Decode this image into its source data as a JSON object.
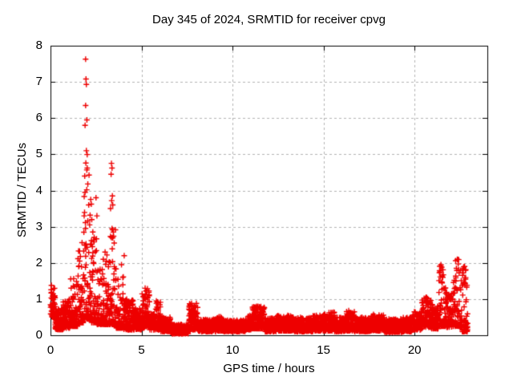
{
  "chart_data": {
    "type": "scatter",
    "title": "Day 345 of 2024, SRMTID for receiver cpvg",
    "xlabel": "GPS time / hours",
    "ylabel": "SRMTID / TECUs",
    "xlim": [
      0,
      24
    ],
    "ylim": [
      0,
      8
    ],
    "xticks": [
      0,
      5,
      10,
      15,
      20
    ],
    "yticks": [
      0,
      1,
      2,
      3,
      4,
      5,
      6,
      7,
      8
    ],
    "grid": {
      "visible": true,
      "style": "dashed",
      "color": "#b4b4b4"
    },
    "legend": "none",
    "marker": {
      "shape": "plus",
      "color": "#ee0000",
      "size": 7
    },
    "series_name": "SRMTID",
    "sampling": {
      "rate_per_hour": 120,
      "t_start": 0.0,
      "t_end": 22.92,
      "seed": 345
    },
    "band_envelope": [
      [
        0.0,
        0.25,
        0.5,
        1.35
      ],
      [
        0.25,
        0.7,
        0.15,
        0.75
      ],
      [
        0.7,
        1.1,
        0.2,
        1.0
      ],
      [
        1.1,
        1.5,
        0.25,
        1.6
      ],
      [
        1.5,
        1.8,
        0.35,
        2.6
      ],
      [
        1.8,
        2.25,
        0.45,
        5.0
      ],
      [
        2.25,
        2.55,
        0.35,
        3.2
      ],
      [
        2.55,
        2.95,
        0.3,
        1.9
      ],
      [
        2.95,
        3.2,
        0.3,
        2.3
      ],
      [
        3.2,
        3.6,
        0.3,
        3.3
      ],
      [
        3.6,
        4.0,
        0.2,
        1.7
      ],
      [
        4.0,
        4.6,
        0.15,
        1.0
      ],
      [
        4.6,
        5.0,
        0.15,
        0.75
      ],
      [
        5.0,
        5.45,
        0.2,
        1.3
      ],
      [
        5.45,
        5.75,
        0.15,
        0.6
      ],
      [
        5.75,
        6.05,
        0.15,
        0.95
      ],
      [
        6.05,
        6.6,
        0.1,
        0.5
      ],
      [
        6.6,
        7.6,
        0.04,
        0.3
      ],
      [
        7.6,
        8.1,
        0.15,
        0.88
      ],
      [
        8.1,
        9.1,
        0.1,
        0.45
      ],
      [
        9.1,
        9.5,
        0.12,
        0.52
      ],
      [
        9.5,
        10.8,
        0.1,
        0.42
      ],
      [
        10.8,
        11.1,
        0.15,
        0.55
      ],
      [
        11.1,
        11.75,
        0.18,
        0.8
      ],
      [
        11.75,
        12.4,
        0.1,
        0.48
      ],
      [
        12.4,
        13.4,
        0.12,
        0.55
      ],
      [
        13.4,
        14.4,
        0.1,
        0.5
      ],
      [
        14.4,
        15.0,
        0.12,
        0.55
      ],
      [
        15.0,
        15.6,
        0.12,
        0.65
      ],
      [
        15.6,
        16.2,
        0.1,
        0.5
      ],
      [
        16.2,
        16.7,
        0.12,
        0.68
      ],
      [
        16.7,
        17.6,
        0.1,
        0.5
      ],
      [
        17.6,
        18.3,
        0.12,
        0.58
      ],
      [
        18.3,
        19.3,
        0.08,
        0.45
      ],
      [
        19.3,
        19.9,
        0.1,
        0.5
      ],
      [
        19.9,
        20.4,
        0.15,
        0.65
      ],
      [
        20.4,
        20.9,
        0.22,
        1.05
      ],
      [
        20.9,
        21.3,
        0.18,
        0.85
      ],
      [
        21.3,
        21.7,
        0.25,
        1.95
      ],
      [
        21.7,
        22.1,
        0.22,
        1.2
      ],
      [
        22.1,
        22.6,
        0.25,
        2.1
      ],
      [
        22.6,
        22.92,
        0.1,
        1.9
      ]
    ],
    "spike_points": [
      [
        0.05,
        1.38
      ],
      [
        1.55,
        1.9
      ],
      [
        1.6,
        2.05
      ],
      [
        1.93,
        7.63
      ],
      [
        1.95,
        7.08
      ],
      [
        1.97,
        6.93
      ],
      [
        1.93,
        6.35
      ],
      [
        2.0,
        5.95
      ],
      [
        1.9,
        5.8
      ],
      [
        1.97,
        5.1
      ],
      [
        2.02,
        4.62
      ],
      [
        1.88,
        4.4
      ],
      [
        2.05,
        4.18
      ],
      [
        1.9,
        3.95
      ],
      [
        2.1,
        3.6
      ],
      [
        1.85,
        3.3
      ],
      [
        2.15,
        3.05
      ],
      [
        2.3,
        2.45
      ],
      [
        2.5,
        3.8
      ],
      [
        2.55,
        3.3
      ],
      [
        2.9,
        2.1
      ],
      [
        3.0,
        2.3
      ],
      [
        3.35,
        4.75
      ],
      [
        3.38,
        4.62
      ],
      [
        3.33,
        4.45
      ],
      [
        3.4,
        3.85
      ],
      [
        3.36,
        3.72
      ],
      [
        3.42,
        3.6
      ],
      [
        3.3,
        3.5
      ],
      [
        3.38,
        2.95
      ],
      [
        3.45,
        2.85
      ],
      [
        3.35,
        2.7
      ],
      [
        3.5,
        2.55
      ],
      [
        3.9,
        1.95
      ],
      [
        4.05,
        2.2
      ],
      [
        5.2,
        1.3
      ],
      [
        5.25,
        1.22
      ],
      [
        7.75,
        0.88
      ],
      [
        11.4,
        0.8
      ],
      [
        20.6,
        1.02
      ],
      [
        21.45,
        1.95
      ],
      [
        21.5,
        1.88
      ],
      [
        21.4,
        1.75
      ],
      [
        21.55,
        1.6
      ],
      [
        22.35,
        2.1
      ],
      [
        22.4,
        1.97
      ],
      [
        22.3,
        1.85
      ],
      [
        22.45,
        1.72
      ],
      [
        22.75,
        1.9
      ],
      [
        22.8,
        1.55
      ],
      [
        22.85,
        0.15
      ],
      [
        22.88,
        0.12
      ]
    ]
  }
}
